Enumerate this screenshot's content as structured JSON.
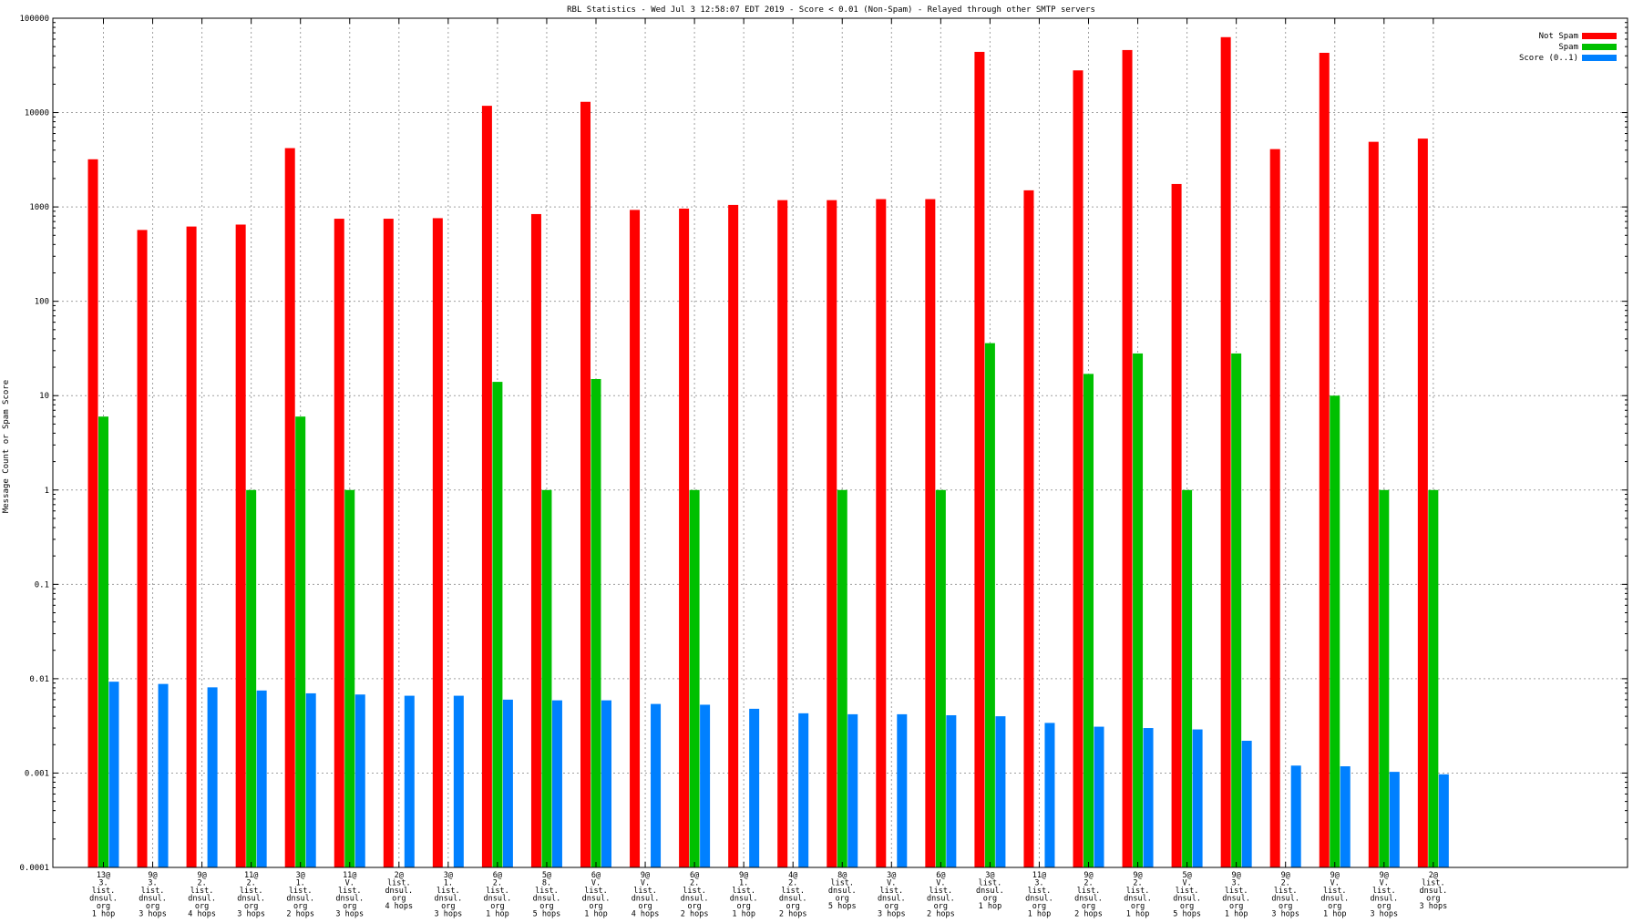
{
  "chart_data": {
    "type": "bar",
    "title": "RBL Statistics - Wed Jul  3 12:58:07 EDT 2019 - Score < 0.01 (Non-Spam) - Relayed through other SMTP servers",
    "xlabel": "",
    "ylabel": "Message Count or Spam Score",
    "yscale": "log",
    "ylim": [
      0.0001,
      100000
    ],
    "yticks": [
      "0.0001",
      "0.001",
      "0.01",
      "0.1",
      "1",
      "10",
      "100",
      "1000",
      "10000",
      "100000"
    ],
    "grid": true,
    "legend_position": "top-right",
    "categories": [
      [
        "13@",
        "3.",
        "list.",
        "dnsul.",
        "org",
        "1 hop"
      ],
      [
        "9@",
        "3.",
        "list.",
        "dnsul.",
        "org",
        "3 hops"
      ],
      [
        "9@",
        "2.",
        "list.",
        "dnsul.",
        "org",
        "4 hops"
      ],
      [
        "11@",
        "2.",
        "list.",
        "dnsul.",
        "org",
        "3 hops"
      ],
      [
        "3@",
        "1.",
        "list.",
        "dnsul.",
        "org",
        "2 hops"
      ],
      [
        "11@",
        "V.",
        "list.",
        "dnsul.",
        "org",
        "3 hops"
      ],
      [
        "2@",
        "list.",
        "dnsul.",
        "org",
        "4 hops"
      ],
      [
        "3@",
        "1.",
        "list.",
        "dnsul.",
        "org",
        "3 hops"
      ],
      [
        "6@",
        "2.",
        "list.",
        "dnsul.",
        "org",
        "1 hop"
      ],
      [
        "5@",
        "8.",
        "list.",
        "dnsul.",
        "org",
        "5 hops"
      ],
      [
        "6@",
        "V.",
        "list.",
        "dnsul.",
        "org",
        "1 hop"
      ],
      [
        "9@",
        "V.",
        "list.",
        "dnsul.",
        "org",
        "4 hops"
      ],
      [
        "6@",
        "2.",
        "list.",
        "dnsul.",
        "org",
        "2 hops"
      ],
      [
        "9@",
        "1.",
        "list.",
        "dnsul.",
        "org",
        "1 hop"
      ],
      [
        "4@",
        "2.",
        "list.",
        "dnsul.",
        "org",
        "2 hops"
      ],
      [
        "8@",
        "list.",
        "dnsul.",
        "org",
        "5 hops"
      ],
      [
        "3@",
        "V.",
        "list.",
        "dnsul.",
        "org",
        "3 hops"
      ],
      [
        "6@",
        "V.",
        "list.",
        "dnsul.",
        "org",
        "2 hops"
      ],
      [
        "3@",
        "list.",
        "dnsul.",
        "org",
        "1 hop"
      ],
      [
        "11@",
        "3.",
        "list.",
        "dnsul.",
        "org",
        "1 hop"
      ],
      [
        "9@",
        "2.",
        "list.",
        "dnsul.",
        "org",
        "2 hops"
      ],
      [
        "9@",
        "2.",
        "list.",
        "dnsul.",
        "org",
        "1 hop"
      ],
      [
        "5@",
        "V.",
        "list.",
        "dnsul.",
        "org",
        "5 hops"
      ],
      [
        "9@",
        "3.",
        "list.",
        "dnsul.",
        "org",
        "1 hop"
      ],
      [
        "9@",
        "2.",
        "list.",
        "dnsul.",
        "org",
        "3 hops"
      ],
      [
        "9@",
        "V.",
        "list.",
        "dnsul.",
        "org",
        "1 hop"
      ],
      [
        "9@",
        "V.",
        "list.",
        "dnsul.",
        "org",
        "3 hops"
      ],
      [
        "2@",
        "list.",
        "dnsul.",
        "org",
        "3 hops"
      ]
    ],
    "series": [
      {
        "name": "Not Spam",
        "color": "#ff0000",
        "values": [
          3200,
          570,
          620,
          650,
          4200,
          750,
          750,
          760,
          11800,
          840,
          13000,
          930,
          960,
          1050,
          1180,
          1180,
          1210,
          1210,
          44000,
          1500,
          28000,
          46000,
          1750,
          63000,
          4100,
          43000,
          4900,
          5300
        ]
      },
      {
        "name": "Spam",
        "color": "#00c000",
        "values": [
          6,
          null,
          null,
          1,
          6,
          1,
          null,
          null,
          14,
          1,
          15,
          null,
          1,
          null,
          null,
          1,
          null,
          1,
          36,
          null,
          17,
          28,
          1,
          28,
          null,
          10,
          1,
          1
        ]
      },
      {
        "name": "Score (0..1)",
        "color": "#0080ff",
        "values": [
          0.0093,
          0.0088,
          0.0081,
          0.0075,
          0.007,
          0.0068,
          0.0066,
          0.0066,
          0.006,
          0.0059,
          0.0059,
          0.0054,
          0.0053,
          0.0048,
          0.0043,
          0.0042,
          0.0042,
          0.0041,
          0.004,
          0.0034,
          0.0031,
          0.003,
          0.0029,
          0.0022,
          0.0012,
          0.00118,
          0.00103,
          0.00097
        ]
      }
    ]
  }
}
